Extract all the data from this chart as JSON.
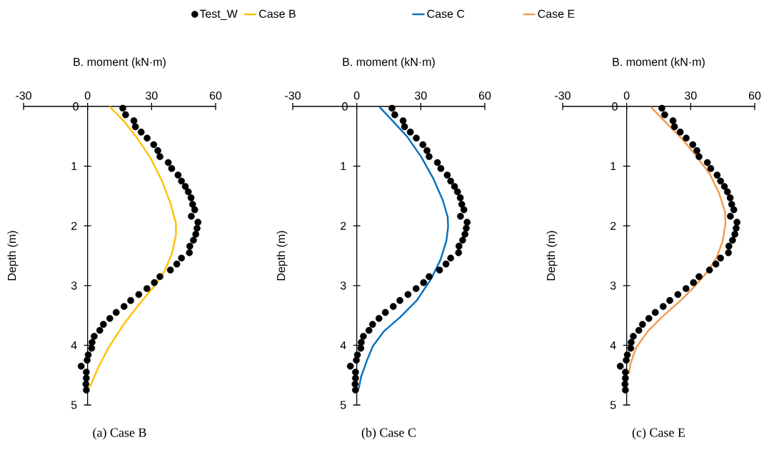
{
  "chart_data": [
    {
      "type": "scatter",
      "xlabel": "B. moment (kN·m)",
      "ylabel": "Depth (m)",
      "annotations": [
        "(a)   Case B"
      ],
      "xlim": [
        -30,
        60
      ],
      "ylim": [
        5,
        0
      ],
      "xticks": [
        -30,
        0,
        30,
        60
      ],
      "yticks": [
        0,
        1,
        2,
        3,
        4,
        5
      ],
      "legend": "top",
      "series": [
        {
          "name": "Test_W",
          "type": "scatter",
          "marker": "circle",
          "color": "#000000",
          "x": [
            16.5,
            17.8,
            21.7,
            22.4,
            25.1,
            27.9,
            31.0,
            32.9,
            33.9,
            37.8,
            39.4,
            42.4,
            44.0,
            45.8,
            47.2,
            48.5,
            49.2,
            50.2,
            48.6,
            51.7,
            51.3,
            50.7,
            49.6,
            47.9,
            47.7,
            44.0,
            41.8,
            38.8,
            33.9,
            31.3,
            27.8,
            24.0,
            20.2,
            17.1,
            13.4,
            10.4,
            7.4,
            5.7,
            3.1,
            2.1,
            1.9,
            0.3,
            -0.2,
            -3.0,
            -0.6,
            -0.6,
            -0.8,
            -0.6
          ],
          "values": [
            0.03,
            0.14,
            0.24,
            0.34,
            0.43,
            0.53,
            0.64,
            0.74,
            0.84,
            0.94,
            1.04,
            1.15,
            1.25,
            1.34,
            1.43,
            1.53,
            1.64,
            1.73,
            1.84,
            1.94,
            2.04,
            2.14,
            2.24,
            2.34,
            2.45,
            2.54,
            2.64,
            2.74,
            2.85,
            2.95,
            3.05,
            3.15,
            3.25,
            3.35,
            3.45,
            3.55,
            3.65,
            3.75,
            3.85,
            3.95,
            4.05,
            4.16,
            4.25,
            4.35,
            4.45,
            4.55,
            4.65,
            4.75
          ]
        },
        {
          "name": "Case B",
          "type": "line",
          "color": "#ffc000",
          "x": [
            10.3,
            17.1,
            23.2,
            29.3,
            34.9,
            39.1,
            41.4,
            41.4,
            39.4,
            36.0,
            31.5,
            24.9,
            17.1,
            9.8,
            8.1,
            4.8,
            0.9
          ],
          "values": [
            0,
            0.25,
            0.53,
            0.85,
            1.25,
            1.65,
            1.96,
            2.16,
            2.48,
            2.76,
            3.0,
            3.28,
            3.64,
            4.04,
            4.16,
            4.39,
            4.71
          ]
        }
      ]
    },
    {
      "type": "scatter",
      "xlabel": "B. moment (kN·m)",
      "ylabel": "Depth (m)",
      "annotations": [
        "(b)   Case C"
      ],
      "xlim": [
        -30,
        60
      ],
      "ylim": [
        5,
        0
      ],
      "xticks": [
        -30,
        0,
        30,
        60
      ],
      "yticks": [
        0,
        1,
        2,
        3,
        4,
        5
      ],
      "legend": "top",
      "series": [
        {
          "marker": "circle",
          "color": "#000000",
          "x": [
            16.5,
            17.8,
            21.7,
            22.4,
            25.1,
            27.9,
            31.0,
            32.9,
            33.9,
            37.8,
            39.4,
            42.4,
            44.0,
            45.8,
            47.2,
            48.5,
            49.2,
            50.2,
            48.6,
            51.7,
            51.3,
            50.7,
            49.6,
            47.9,
            47.7,
            44.0,
            41.8,
            38.8,
            33.9,
            31.3,
            27.8,
            24.0,
            20.2,
            17.1,
            13.4,
            10.4,
            7.4,
            5.7,
            3.1,
            2.1,
            1.9,
            0.3,
            -0.2,
            -3.0,
            -0.6,
            -0.6,
            -0.8,
            -0.6
          ],
          "values": [
            0.03,
            0.14,
            0.24,
            0.34,
            0.43,
            0.53,
            0.64,
            0.74,
            0.84,
            0.94,
            1.04,
            1.15,
            1.25,
            1.34,
            1.43,
            1.53,
            1.64,
            1.73,
            1.84,
            1.94,
            2.04,
            2.14,
            2.24,
            2.34,
            2.45,
            2.54,
            2.64,
            2.74,
            2.85,
            2.95,
            3.05,
            3.15,
            3.25,
            3.35,
            3.45,
            3.55,
            3.65,
            3.75,
            3.85,
            3.95,
            4.05,
            4.16,
            4.25,
            4.35,
            4.45,
            4.55,
            4.65,
            4.75
          ]
        },
        {
          "name": "Case C",
          "type": "line",
          "color": "#0070c0",
          "x": [
            10.7,
            17.0,
            23.7,
            30.3,
            35.9,
            40.3,
            42.6,
            42.8,
            42.0,
            39.2,
            34.8,
            28.1,
            20.3,
            12.6,
            7.6,
            4.8,
            2.0,
            0.9
          ],
          "values": [
            0.01,
            0.25,
            0.51,
            0.85,
            1.21,
            1.57,
            1.85,
            2.01,
            2.25,
            2.57,
            2.89,
            3.25,
            3.53,
            3.77,
            4.01,
            4.25,
            4.53,
            4.73
          ]
        }
      ]
    },
    {
      "type": "scatter",
      "xlabel": "B. moment (kN·m)",
      "ylabel": "Depth (m)",
      "annotations": [
        "(c)   Case E"
      ],
      "xlim": [
        -30,
        60
      ],
      "ylim": [
        5,
        0
      ],
      "xticks": [
        -30,
        0,
        30,
        60
      ],
      "yticks": [
        0,
        1,
        2,
        3,
        4,
        5
      ],
      "legend": "top",
      "series": [
        {
          "marker": "circle",
          "color": "#000000",
          "x": [
            16.5,
            17.8,
            21.7,
            22.4,
            25.1,
            27.9,
            31.0,
            32.9,
            33.9,
            37.8,
            39.4,
            42.4,
            44.0,
            45.8,
            47.2,
            48.5,
            49.2,
            50.2,
            48.6,
            51.7,
            51.3,
            50.7,
            49.6,
            47.9,
            47.7,
            44.0,
            41.8,
            38.8,
            33.9,
            31.3,
            27.8,
            24.0,
            20.2,
            17.1,
            13.4,
            10.4,
            7.4,
            5.7,
            3.1,
            2.1,
            1.9,
            0.3,
            -0.2,
            -3.0,
            -0.6,
            -0.6,
            -0.8,
            -0.6
          ],
          "values": [
            0.03,
            0.14,
            0.24,
            0.34,
            0.43,
            0.53,
            0.64,
            0.74,
            0.84,
            0.94,
            1.04,
            1.15,
            1.25,
            1.34,
            1.43,
            1.53,
            1.64,
            1.73,
            1.84,
            1.94,
            2.04,
            2.14,
            2.24,
            2.34,
            2.45,
            2.54,
            2.64,
            2.74,
            2.85,
            2.95,
            3.05,
            3.15,
            3.25,
            3.35,
            3.45,
            3.55,
            3.65,
            3.75,
            3.85,
            3.95,
            4.05,
            4.16,
            4.25,
            4.35,
            4.45,
            4.55,
            4.65,
            4.75
          ]
        },
        {
          "name": "Case E",
          "type": "line",
          "color": "#f39a4e",
          "x": [
            11.4,
            17.8,
            25.6,
            32.2,
            38.9,
            43.3,
            46.1,
            46.3,
            45.0,
            42.2,
            37.8,
            32.2,
            25.6,
            16.7,
            10.0,
            4.4,
            1.7,
            1.1
          ],
          "values": [
            0.01,
            0.25,
            0.53,
            0.81,
            1.13,
            1.45,
            1.77,
            1.97,
            2.25,
            2.53,
            2.77,
            3.0,
            3.24,
            3.52,
            3.76,
            4.04,
            4.32,
            4.48
          ]
        }
      ]
    }
  ]
}
